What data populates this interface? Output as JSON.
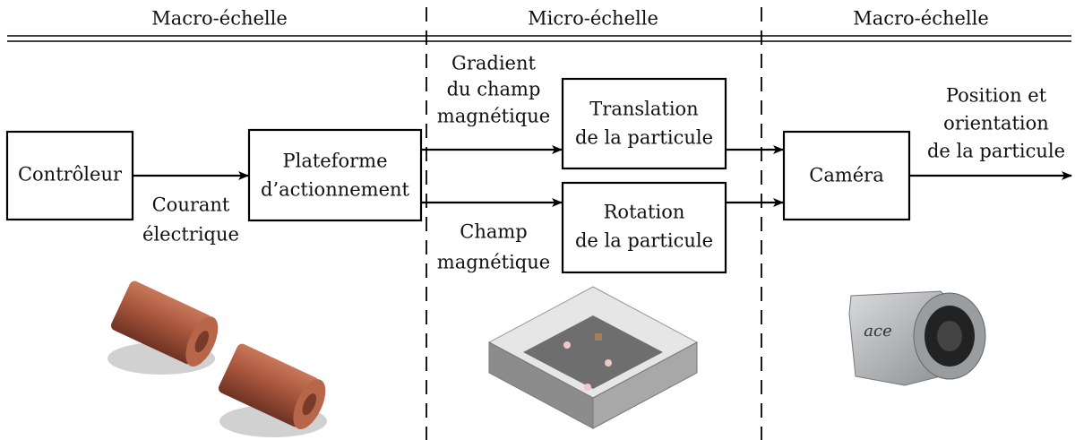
{
  "headers": [
    "Macro-échelle",
    "Micro-échelle",
    "Macro-échelle"
  ],
  "nodes": [
    {
      "lines": [
        "Contrôleur"
      ]
    },
    {
      "lines": [
        "Plateforme",
        "d’actionnement"
      ]
    },
    {
      "lines": [
        "Translation",
        "de la particule"
      ]
    },
    {
      "lines": [
        "Rotation",
        "de la particule"
      ]
    },
    {
      "lines": [
        "Caméra"
      ]
    }
  ],
  "edge_labels": [
    {
      "lines": [
        "Courant",
        "électrique"
      ]
    },
    {
      "lines": [
        "Gradient",
        "du champ",
        "magnétique"
      ]
    },
    {
      "lines": [
        "Champ",
        "magnétique"
      ]
    },
    {
      "lines": [
        "Position et",
        "orientation",
        "de la particule"
      ]
    }
  ]
}
